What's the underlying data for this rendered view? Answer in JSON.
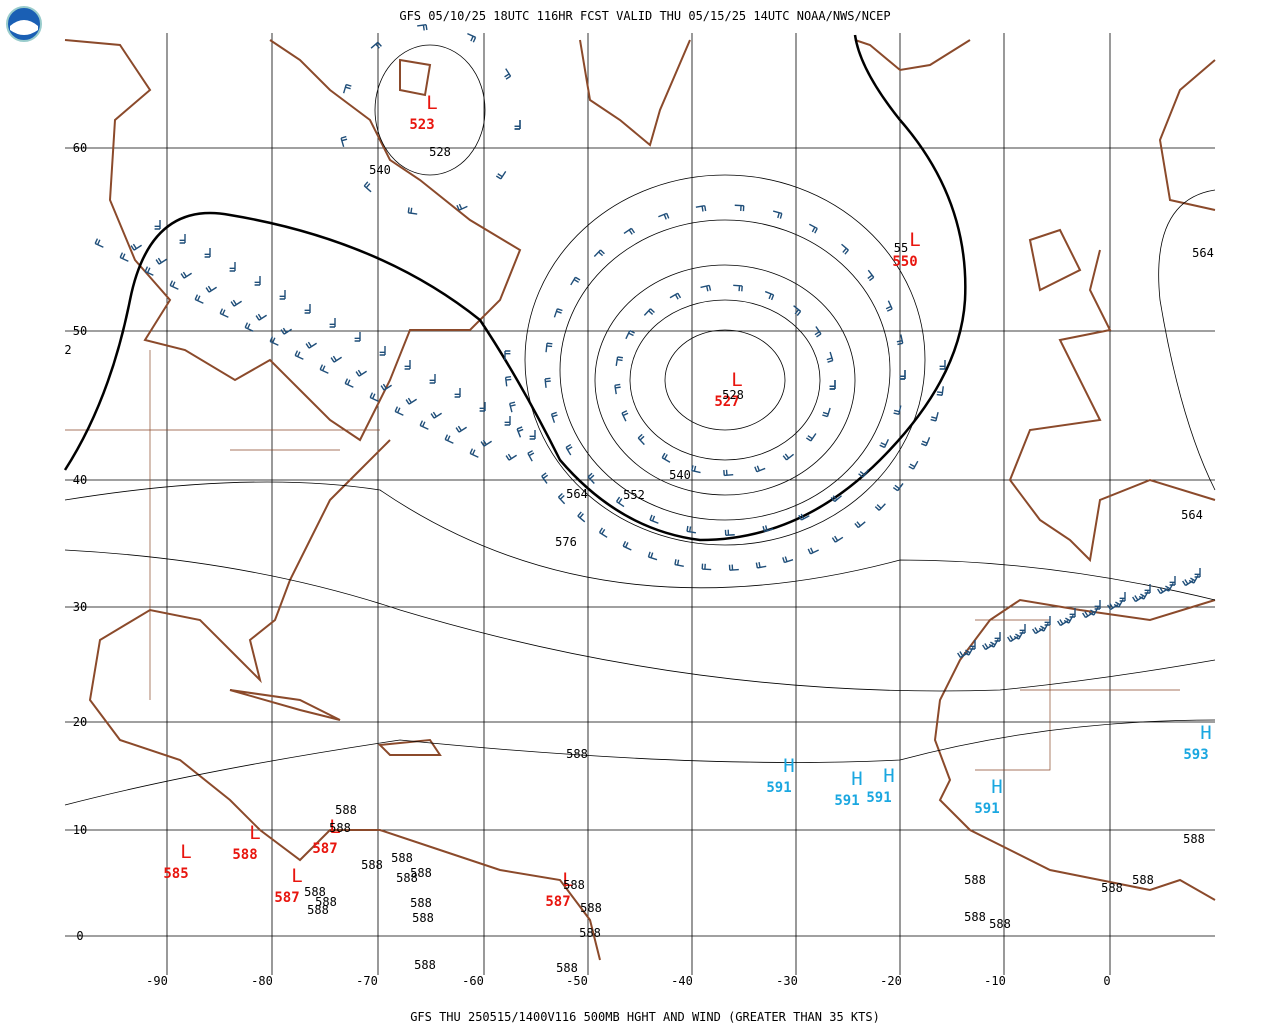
{
  "header": {
    "title": "GFS 05/10/25 18UTC 116HR FCST VALID THU 05/15/25 14UTC NOAA/NWS/NCEP"
  },
  "footer": {
    "text": "GFS THU 250515/1400V116 500MB HGHT AND WIND (GREATER THAN 35 KTS)"
  },
  "grid": {
    "lat_labels": [
      "60",
      "50",
      "40",
      "30",
      "20",
      "10",
      "0",
      "2"
    ],
    "lon_labels": [
      "-90",
      "-80",
      "-70",
      "-60",
      "-50",
      "-40",
      "-30",
      "-20",
      "-10",
      "0"
    ]
  },
  "centers": [
    {
      "symbol": "L",
      "value": "523"
    },
    {
      "symbol": "L",
      "value": "527"
    },
    {
      "symbol": "L",
      "value": "550"
    },
    {
      "symbol": "L",
      "value": "585"
    },
    {
      "symbol": "L",
      "value": "588"
    },
    {
      "symbol": "L",
      "value": "587"
    },
    {
      "symbol": "L",
      "value": "587"
    },
    {
      "symbol": "L",
      "value": "587"
    },
    {
      "symbol": "H",
      "value": "591"
    },
    {
      "symbol": "H",
      "value": "591"
    },
    {
      "symbol": "H",
      "value": "591"
    },
    {
      "symbol": "H",
      "value": "591"
    },
    {
      "symbol": "H",
      "value": "593"
    }
  ],
  "contour_labels": [
    "528",
    "540",
    "540",
    "552",
    "564",
    "576",
    "528",
    "55",
    "564",
    "564",
    "588",
    "588",
    "588",
    "588",
    "588",
    "588",
    "588",
    "588",
    "588",
    "588",
    "588",
    "588",
    "588",
    "588",
    "588",
    "588",
    "588",
    "588",
    "588",
    "588",
    "588",
    "588",
    "588"
  ]
}
